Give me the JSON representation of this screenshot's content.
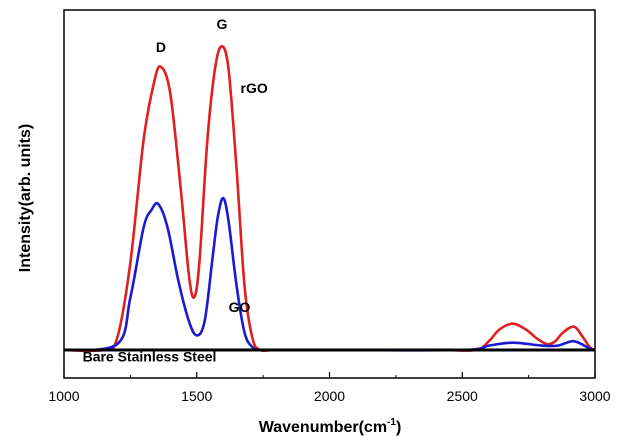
{
  "chart_data": {
    "type": "line",
    "xlabel": "Wavenumber(cm",
    "xlabel_sup": "-1",
    "xlabel_close": ")",
    "ylabel": "Intensity(arb. units)",
    "xlim": [
      1000,
      3000
    ],
    "ylim": [
      0,
      1.08
    ],
    "x_ticks": [
      1000,
      1500,
      2000,
      2500,
      3000
    ],
    "x_tick_labels": [
      "1000",
      "1500",
      "2000",
      "2500",
      "3000"
    ],
    "y_tick_labels_shown": false,
    "grid": false,
    "series": [
      {
        "name": "rGO",
        "color": "#e02020",
        "x": [
          1000,
          1150,
          1200,
          1250,
          1300,
          1340,
          1365,
          1400,
          1440,
          1470,
          1490,
          1510,
          1540,
          1570,
          1595,
          1620,
          1650,
          1680,
          1710,
          1740,
          1800,
          2000,
          2400,
          2550,
          2600,
          2640,
          2690,
          2740,
          2780,
          2820,
          2850,
          2880,
          2920,
          2950,
          2980,
          3000
        ],
        "y": [
          0.0,
          0.0,
          0.04,
          0.3,
          0.72,
          0.92,
          0.97,
          0.88,
          0.55,
          0.26,
          0.18,
          0.3,
          0.72,
          0.97,
          1.04,
          0.96,
          0.62,
          0.22,
          0.04,
          0.0,
          0.0,
          0.0,
          0.0,
          0.0,
          0.03,
          0.07,
          0.09,
          0.07,
          0.04,
          0.02,
          0.03,
          0.06,
          0.08,
          0.05,
          0.01,
          0.0
        ]
      },
      {
        "name": "GO",
        "color": "#1a1ad0",
        "x": [
          1000,
          1200,
          1250,
          1300,
          1330,
          1355,
          1390,
          1430,
          1470,
          1500,
          1530,
          1560,
          1580,
          1600,
          1620,
          1650,
          1680,
          1710,
          1750,
          2000,
          2500,
          2600,
          2690,
          2800,
          2860,
          2920,
          2980,
          3000
        ],
        "y": [
          0.0,
          0.02,
          0.18,
          0.42,
          0.48,
          0.5,
          0.42,
          0.24,
          0.1,
          0.05,
          0.1,
          0.32,
          0.46,
          0.52,
          0.44,
          0.22,
          0.06,
          0.01,
          0.0,
          0.0,
          0.0,
          0.015,
          0.025,
          0.015,
          0.015,
          0.03,
          0.005,
          0.0
        ]
      },
      {
        "name": "Bare Stainless Steel",
        "color": "#000000",
        "x": [
          1000,
          3000
        ],
        "y": [
          0.0,
          0.0
        ]
      }
    ],
    "annotations": [
      {
        "text": "D",
        "x": 1365,
        "y": 1.02
      },
      {
        "text": "G",
        "x": 1595,
        "y": 1.1
      },
      {
        "text": "rGO",
        "x": 1665,
        "y": 0.88
      },
      {
        "text": "GO",
        "x": 1620,
        "y": 0.13
      },
      {
        "text": "Bare Stainless Steel",
        "x": 1070,
        "y": -0.04
      }
    ]
  }
}
